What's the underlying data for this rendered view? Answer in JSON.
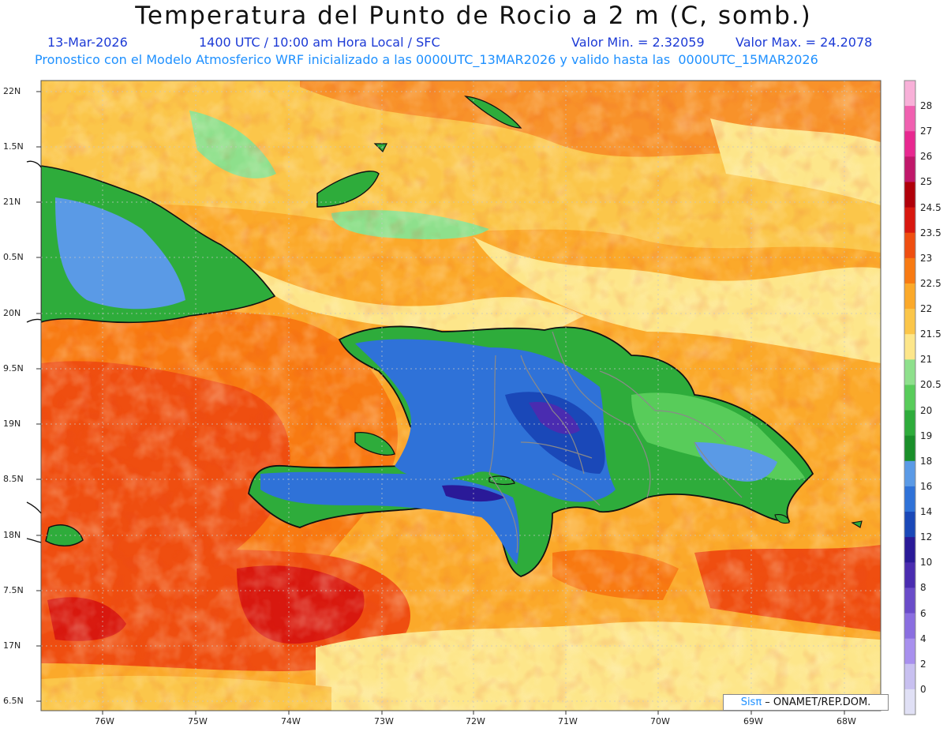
{
  "header": {
    "title": "Temperatura del Punto de Rocio a 2 m (C, somb.)",
    "date": "13-Mar-2026",
    "time": "1400 UTC / 10:00 am Hora Local / SFC",
    "min_label": "Valor Min. = 2.32059",
    "max_label": "Valor Max. = 24.2078",
    "model_line": "Pronostico con el Modelo Atmosferico WRF inicializado a las 0000UTC_13MAR2026 y valido hasta las  0000UTC_15MAR2026"
  },
  "map": {
    "lat_labels": [
      "22N",
      "1.5N",
      "21N",
      "0.5N",
      "20N",
      "9.5N",
      "19N",
      "8.5N",
      "18N",
      "7.5N",
      "17N",
      "6.5N"
    ],
    "lon_labels": [
      "76W",
      "75W",
      "74W",
      "73W",
      "72W",
      "71W",
      "70W",
      "69W",
      "68W"
    ],
    "credit_brand": "Sisπ",
    "credit_text": " – ONAMET/REP.DOM."
  },
  "legend": {
    "levels": [
      "0",
      "2",
      "4",
      "6",
      "8",
      "10",
      "12",
      "14",
      "16",
      "18",
      "19",
      "20",
      "20.5",
      "21",
      "21.5",
      "22",
      "22.5",
      "23",
      "23.5",
      "24.5",
      "25",
      "26",
      "27",
      "28"
    ],
    "colors": [
      "#e0e0f5",
      "#c8c0f0",
      "#a890ee",
      "#8a6ee0",
      "#6a4cc9",
      "#4a2cb0",
      "#2a1a98",
      "#1a48b8",
      "#2f72d8",
      "#5a9ae6",
      "#1a8f2a",
      "#2eac3b",
      "#58cc5a",
      "#8ee08c",
      "#fde68a",
      "#fbc64a",
      "#fba92a",
      "#f87a12",
      "#ef4e10",
      "#d8180f",
      "#b0000a",
      "#c0186a",
      "#e82890",
      "#f060b0",
      "#f8b0d8"
    ]
  }
}
